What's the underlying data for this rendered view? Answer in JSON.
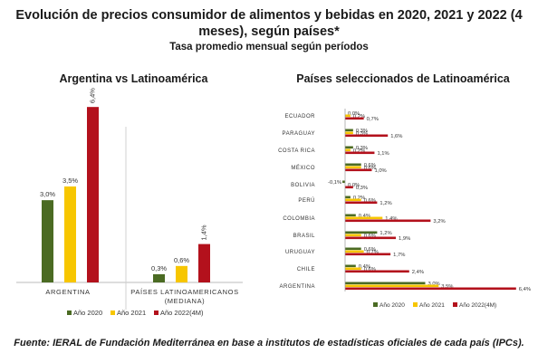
{
  "header": {
    "title": "Evolución de precios consumidor de alimentos y bebidas en 2020, 2021 y 2022 (4 meses), según países*",
    "subtitle": "Tasa promedio mensual según períodos"
  },
  "colors": {
    "2020": "#4b6b23",
    "2021": "#f7c600",
    "2022": "#b3111c",
    "grid": "#d0d0d0"
  },
  "chart_data": [
    {
      "type": "bar",
      "title": "Argentina vs Latinoamérica",
      "categories": [
        "ARGENTINA",
        "PAÍSES LATINOAMERICANOS (MEDIANA)"
      ],
      "series": [
        {
          "name": "Año 2020",
          "values": [
            3.0,
            0.3
          ],
          "labels": [
            "3,0%",
            "0,3%"
          ]
        },
        {
          "name": "Año 2021",
          "values": [
            3.5,
            0.6
          ],
          "labels": [
            "3,5%",
            "0,6%"
          ]
        },
        {
          "name": "Año 2022(4M)",
          "values": [
            6.4,
            1.4
          ],
          "labels": [
            "6,4%",
            "1,4%"
          ]
        }
      ],
      "ylim": [
        0,
        7
      ],
      "legend": "bottom"
    },
    {
      "type": "bar",
      "orientation": "horizontal",
      "title": "Países seleccionados de Latinoamérica",
      "categories": [
        "ECUADOR",
        "PARAGUAY",
        "COSTA RICA",
        "MÉXICO",
        "BOLIVIA",
        "PERÚ",
        "COLOMBIA",
        "BRASIL",
        "URUGUAY",
        "CHILE",
        "ARGENTINA"
      ],
      "series": [
        {
          "name": "Año 2020",
          "values": [
            0.0,
            0.3,
            0.3,
            0.6,
            -0.1,
            0.2,
            0.4,
            1.2,
            0.6,
            0.4,
            3.0
          ],
          "labels": [
            "0,0%",
            "0,3%",
            "0,3%",
            "0,6%",
            "-0,1%",
            "0,2%",
            "0,4%",
            "1,2%",
            "0,6%",
            "0,4%",
            "3,0%"
          ]
        },
        {
          "name": "Año 2021",
          "values": [
            0.2,
            0.3,
            0.2,
            0.6,
            0.0,
            0.6,
            1.4,
            0.6,
            0.7,
            0.6,
            3.5
          ],
          "labels": [
            "0,2%",
            "0,3%",
            "0,2%",
            "0,6%",
            "0,0%",
            "0,6%",
            "1,4%",
            "0,6%",
            "0,7%",
            "0,6%",
            "3,5%"
          ]
        },
        {
          "name": "Año 2022(4M)",
          "values": [
            0.7,
            1.6,
            1.1,
            1.0,
            0.3,
            1.2,
            3.2,
            1.9,
            1.7,
            2.4,
            6.4
          ],
          "labels": [
            "0,7%",
            "1,6%",
            "1,1%",
            "1,0%",
            "0,3%",
            "1,2%",
            "3,2%",
            "1,9%",
            "1,7%",
            "2,4%",
            "6,4%"
          ]
        }
      ],
      "legend": "bottom"
    }
  ],
  "footer": {
    "source": "Fuente: IERAL de Fundación Mediterránea en base a institutos de estadísticas oficiales de cada país (IPCs)."
  }
}
